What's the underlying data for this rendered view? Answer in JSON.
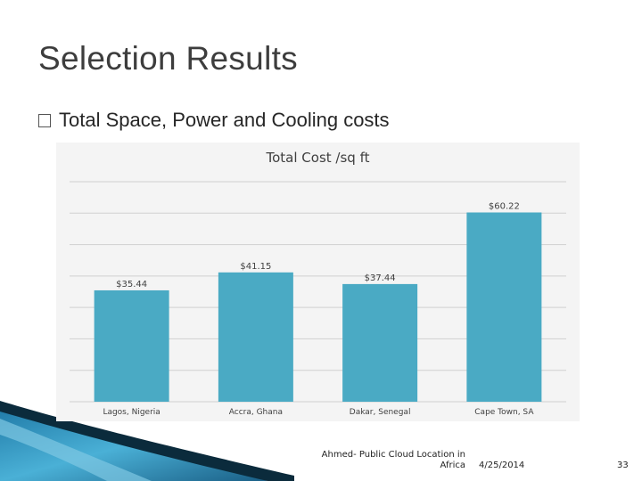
{
  "slide": {
    "title": "Selection Results",
    "bullet": "Total Space, Power and Cooling costs"
  },
  "chart_data": {
    "type": "bar",
    "title": "Total Cost /sq ft",
    "categories": [
      "Lagos, Nigeria",
      "Accra, Ghana",
      "Dakar, Senegal",
      "Cape Town, SA"
    ],
    "values": [
      35.44,
      41.15,
      37.44,
      60.22
    ],
    "data_labels": [
      "$35.44",
      "$41.15",
      "$37.44",
      "$60.22"
    ],
    "ylim": [
      0,
      70
    ],
    "grid": true,
    "bar_color": "#4aaac4"
  },
  "footer": {
    "author": "Ahmed- Public Cloud Location in Africa",
    "date": "4/25/2014",
    "page": "33"
  },
  "colors": {
    "deco_dark": "#0b2b3c",
    "deco_light": "#2f8fb8"
  }
}
